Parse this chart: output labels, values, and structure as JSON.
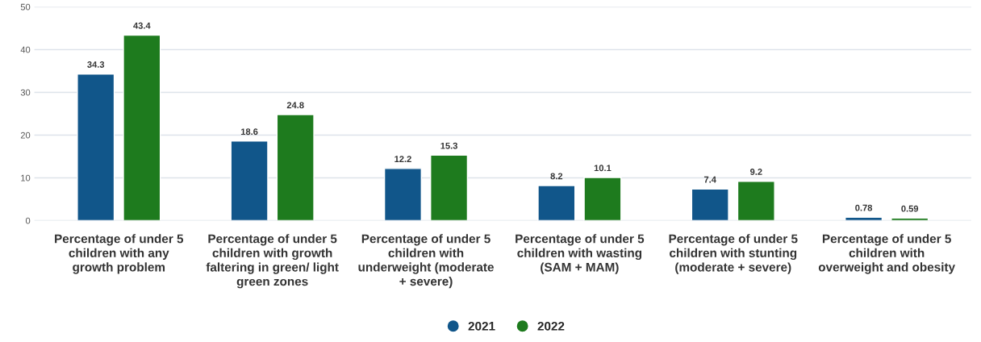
{
  "chart_data": {
    "type": "bar",
    "categories": [
      "Percentage of under 5\nchildren with any\ngrowth problem",
      "Percentage of under 5\nchildren with growth\nfaltering in green/ light\ngreen zones",
      "Percentage of under 5\nchildren with\nunderweight (moderate\n+ severe)",
      "Percentage of under 5\nchildren with wasting\n(SAM + MAM)",
      "Percentage of under 5\nchildren with stunting\n(moderate + severe)",
      "Percentage of under 5\nchildren with\noverweight and obesity"
    ],
    "series": [
      {
        "name": "2021",
        "color": "#11568a",
        "values": [
          34.3,
          18.6,
          12.2,
          8.2,
          7.4,
          0.78
        ]
      },
      {
        "name": "2022",
        "color": "#1e7b1e",
        "values": [
          43.4,
          24.8,
          15.3,
          10.1,
          9.2,
          0.59
        ]
      }
    ],
    "ylim": [
      0,
      50
    ],
    "yticks": [
      0,
      10,
      20,
      30,
      40,
      50
    ],
    "grid": "y",
    "legend": "bottom",
    "data_labels": true
  }
}
